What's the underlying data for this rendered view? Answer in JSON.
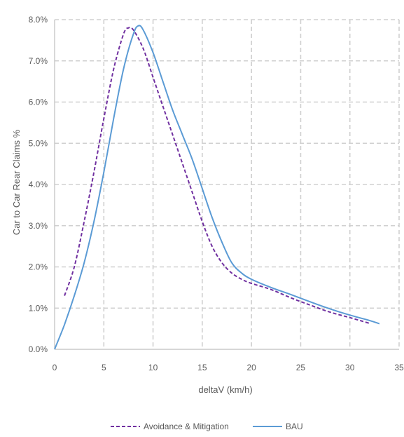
{
  "chart_data": {
    "type": "line",
    "title": "",
    "xlabel": "deltaV (km/h)",
    "ylabel": "Car to Car Rear Claims %",
    "xlim": [
      0,
      35
    ],
    "ylim": [
      0,
      8
    ],
    "x_ticks": [
      "0",
      "5",
      "10",
      "15",
      "20",
      "25",
      "30",
      "35"
    ],
    "y_ticks": [
      "0.0%",
      "1.0%",
      "2.0%",
      "3.0%",
      "4.0%",
      "5.0%",
      "6.0%",
      "7.0%",
      "8.0%"
    ],
    "grid": true,
    "legend_position": "bottom",
    "series": [
      {
        "name": "Avoidance & Mitigation",
        "color": "#7030a0",
        "dash": "dashed",
        "points": [
          [
            1,
            1.3
          ],
          [
            2,
            2.0
          ],
          [
            3,
            3.1
          ],
          [
            4,
            4.3
          ],
          [
            5,
            5.6
          ],
          [
            6,
            6.8
          ],
          [
            7,
            7.65
          ],
          [
            7.5,
            7.8
          ],
          [
            8,
            7.75
          ],
          [
            9,
            7.3
          ],
          [
            10,
            6.6
          ],
          [
            11,
            5.9
          ],
          [
            12,
            5.2
          ],
          [
            13,
            4.5
          ],
          [
            14,
            3.8
          ],
          [
            15,
            3.1
          ],
          [
            16,
            2.5
          ],
          [
            17,
            2.1
          ],
          [
            18,
            1.85
          ],
          [
            19,
            1.7
          ],
          [
            20,
            1.6
          ],
          [
            22,
            1.45
          ],
          [
            24,
            1.25
          ],
          [
            26,
            1.07
          ],
          [
            28,
            0.9
          ],
          [
            30,
            0.77
          ],
          [
            32,
            0.63
          ]
        ]
      },
      {
        "name": "BAU",
        "color": "#5b9bd5",
        "dash": "solid",
        "points": [
          [
            0,
            0.0
          ],
          [
            1,
            0.6
          ],
          [
            2,
            1.3
          ],
          [
            3,
            2.1
          ],
          [
            4,
            3.1
          ],
          [
            5,
            4.3
          ],
          [
            6,
            5.6
          ],
          [
            7,
            6.8
          ],
          [
            8,
            7.65
          ],
          [
            8.5,
            7.85
          ],
          [
            9,
            7.75
          ],
          [
            10,
            7.2
          ],
          [
            11,
            6.5
          ],
          [
            12,
            5.8
          ],
          [
            13,
            5.2
          ],
          [
            14,
            4.6
          ],
          [
            15,
            3.9
          ],
          [
            16,
            3.2
          ],
          [
            17,
            2.6
          ],
          [
            18,
            2.1
          ],
          [
            19,
            1.85
          ],
          [
            20,
            1.7
          ],
          [
            22,
            1.5
          ],
          [
            24,
            1.33
          ],
          [
            26,
            1.15
          ],
          [
            28,
            0.98
          ],
          [
            30,
            0.83
          ],
          [
            32,
            0.7
          ],
          [
            33,
            0.62
          ]
        ]
      }
    ]
  }
}
